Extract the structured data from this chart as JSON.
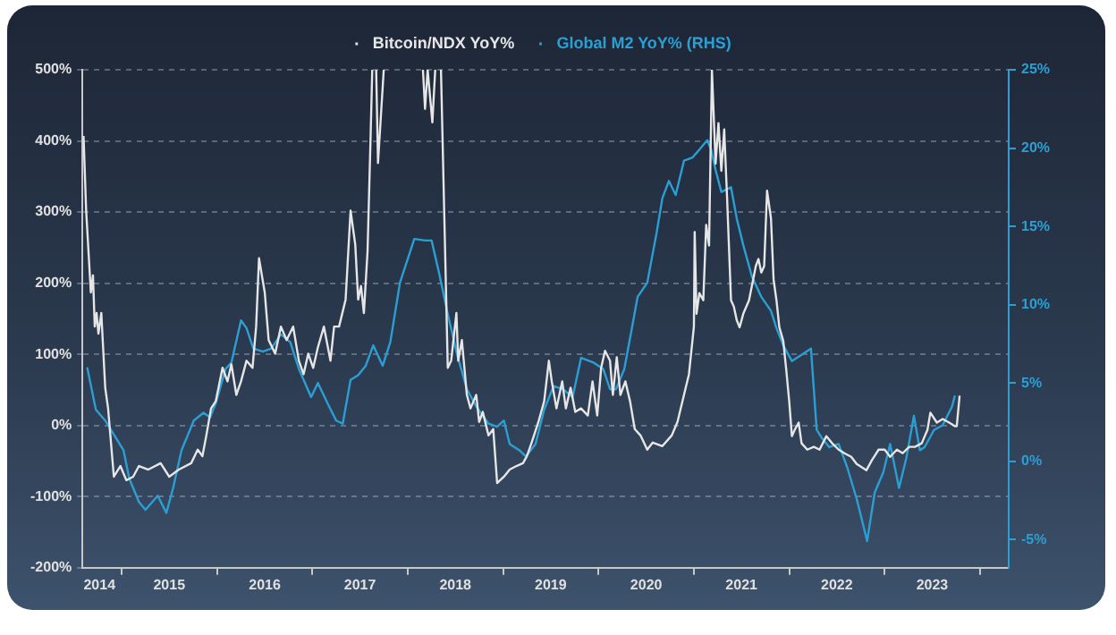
{
  "chart_data": {
    "type": "line",
    "legend": "top",
    "grid": "y",
    "xlim": [
      "2014-08-04",
      "2024-04-20"
    ],
    "xticks": [
      {
        "value": "2014-10-08",
        "label": "2014"
      },
      {
        "value": "2015-01-01",
        "label": null
      },
      {
        "value": "2015-07-02",
        "label": "2015"
      },
      {
        "value": "2016-01-01",
        "label": null
      },
      {
        "value": "2016-07-02",
        "label": "2016"
      },
      {
        "value": "2017-01-01",
        "label": null
      },
      {
        "value": "2017-07-02",
        "label": "2017"
      },
      {
        "value": "2018-01-01",
        "label": null
      },
      {
        "value": "2018-07-02",
        "label": "2018"
      },
      {
        "value": "2019-01-01",
        "label": null
      },
      {
        "value": "2019-07-02",
        "label": "2019"
      },
      {
        "value": "2020-01-01",
        "label": null
      },
      {
        "value": "2020-07-02",
        "label": "2020"
      },
      {
        "value": "2021-01-01",
        "label": null
      },
      {
        "value": "2021-07-02",
        "label": "2021"
      },
      {
        "value": "2022-01-01",
        "label": null
      },
      {
        "value": "2022-07-02",
        "label": "2022"
      },
      {
        "value": "2023-01-01",
        "label": null
      },
      {
        "value": "2023-07-02",
        "label": "2023"
      },
      {
        "value": "2024-01-01",
        "label": null
      }
    ],
    "ylim": [
      -200,
      500
    ],
    "yticks": [
      {
        "value": -200,
        "label": "-200%"
      },
      {
        "value": -100,
        "label": "-100%"
      },
      {
        "value": 0,
        "label": "0%"
      },
      {
        "value": 100,
        "label": "100%"
      },
      {
        "value": 200,
        "label": "200%"
      },
      {
        "value": 300,
        "label": "300%"
      },
      {
        "value": 400,
        "label": "400%"
      },
      {
        "value": 500,
        "label": "500%"
      }
    ],
    "y2lim": [
      -6.8,
      25
    ],
    "y2ticks": [
      {
        "value": -5,
        "label": "-5%"
      },
      {
        "value": 0,
        "label": "0%"
      },
      {
        "value": 5,
        "label": "5%"
      },
      {
        "value": 10,
        "label": "10%"
      },
      {
        "value": 15,
        "label": "15%"
      },
      {
        "value": 20,
        "label": "20%"
      },
      {
        "value": 25,
        "label": "25%"
      }
    ],
    "series": [
      {
        "name": "Bitcoin/NDX YoY%",
        "color": "#e6e6e6",
        "x": [
          "2014-08-08",
          "2014-08-18",
          "2014-09-05",
          "2014-09-13",
          "2014-09-20",
          "2014-09-27",
          "2014-10-04",
          "2014-10-15",
          "2014-10-30",
          "2014-11-10",
          "2014-12-02",
          "2014-12-27",
          "2015-01-19",
          "2015-02-14",
          "2015-03-08",
          "2015-04-13",
          "2015-05-30",
          "2015-07-02",
          "2015-08-08",
          "2015-09-24",
          "2015-10-19",
          "2015-11-06",
          "2015-11-21",
          "2015-12-09",
          "2015-12-27",
          "2016-01-22",
          "2016-02-10",
          "2016-02-25",
          "2016-03-15",
          "2016-04-02",
          "2016-04-23",
          "2016-05-16",
          "2016-05-30",
          "2016-06-10",
          "2016-07-02",
          "2016-07-17",
          "2016-08-11",
          "2016-09-02",
          "2016-09-24",
          "2016-10-19",
          "2016-11-10",
          "2016-11-28",
          "2016-12-16",
          "2017-01-04",
          "2017-01-22",
          "2017-02-14",
          "2017-03-11",
          "2017-03-25",
          "2017-04-13",
          "2017-05-08",
          "2017-05-27",
          "2017-06-14",
          "2017-06-25",
          "2017-07-06",
          "2017-07-17",
          "2017-07-31",
          "2017-08-11",
          "2017-08-18",
          "2017-08-25",
          "2017-09-02",
          "2017-09-09",
          "2017-10-01",
          "2017-12-01",
          "2018-02-28",
          "2018-03-08",
          "2018-03-18",
          "2018-04-05",
          "2018-04-16",
          "2018-04-26",
          "2018-05-08",
          "2018-06-03",
          "2018-06-16",
          "2018-07-06",
          "2018-07-13",
          "2018-07-27",
          "2018-08-15",
          "2018-08-29",
          "2018-09-20",
          "2018-10-01",
          "2018-10-15",
          "2018-11-06",
          "2018-11-24",
          "2018-12-09",
          "2019-01-04",
          "2019-01-26",
          "2019-02-21",
          "2019-03-18",
          "2019-04-02",
          "2019-04-20",
          "2019-05-16",
          "2019-06-07",
          "2019-06-25",
          "2019-07-06",
          "2019-07-24",
          "2019-08-15",
          "2019-08-29",
          "2019-09-16",
          "2019-10-04",
          "2019-10-26",
          "2019-11-21",
          "2019-12-09",
          "2019-12-27",
          "2020-01-11",
          "2020-01-26",
          "2020-02-14",
          "2020-02-25",
          "2020-03-11",
          "2020-03-25",
          "2020-04-13",
          "2020-05-01",
          "2020-05-19",
          "2020-06-10",
          "2020-07-06",
          "2020-07-27",
          "2020-09-02",
          "2020-10-08",
          "2020-10-30",
          "2020-11-24",
          "2020-12-13",
          "2021-01-01",
          "2021-01-04",
          "2021-01-11",
          "2021-01-22",
          "2021-02-06",
          "2021-02-17",
          "2021-02-28",
          "2021-03-11",
          "2021-03-25",
          "2021-04-05",
          "2021-04-16",
          "2021-04-27",
          "2021-05-08",
          "2021-05-23",
          "2021-06-03",
          "2021-06-14",
          "2021-06-25",
          "2021-07-09",
          "2021-07-31",
          "2021-08-26",
          "2021-09-05",
          "2021-09-16",
          "2021-09-27",
          "2021-10-08",
          "2021-10-23",
          "2021-11-02",
          "2021-11-13",
          "2021-11-24",
          "2021-12-09",
          "2021-12-20",
          "2022-01-01",
          "2022-01-11",
          "2022-01-22",
          "2022-02-06",
          "2022-02-17",
          "2022-03-11",
          "2022-04-05",
          "2022-04-27",
          "2022-05-23",
          "2022-06-14",
          "2022-07-09",
          "2022-07-31",
          "2022-08-26",
          "2022-09-16",
          "2022-10-23",
          "2022-11-13",
          "2022-12-09",
          "2023-01-01",
          "2023-01-22",
          "2023-02-17",
          "2023-03-11",
          "2023-04-05",
          "2023-04-27",
          "2023-05-23",
          "2023-06-14",
          "2023-06-25",
          "2023-07-20",
          "2023-08-11",
          "2023-09-05",
          "2023-09-27",
          "2023-10-04",
          "2023-10-15"
        ],
        "values": [
          407,
          302,
          187,
          211,
          139,
          158,
          129,
          158,
          53,
          24,
          -72,
          -57,
          -77,
          -72,
          -57,
          -62,
          -53,
          -72,
          -62,
          -53,
          -34,
          -43,
          -14,
          24,
          34,
          81,
          62,
          86,
          43,
          62,
          91,
          81,
          139,
          235,
          187,
          120,
          101,
          139,
          120,
          139,
          91,
          72,
          101,
          81,
          110,
          139,
          91,
          139,
          139,
          177,
          302,
          254,
          177,
          196,
          158,
          245,
          397,
          500,
          null,
          500,
          369,
          500,
          null,
          500,
          445,
          500,
          426,
          500,
          null,
          500,
          81,
          91,
          158,
          91,
          120,
          43,
          24,
          43,
          5,
          19,
          -14,
          -5,
          -81,
          -72,
          -62,
          -57,
          -53,
          -43,
          -24,
          5,
          34,
          91,
          62,
          24,
          62,
          24,
          53,
          19,
          24,
          14,
          62,
          14,
          81,
          105,
          91,
          43,
          96,
          43,
          62,
          34,
          -5,
          -14,
          -34,
          -24,
          -29,
          -14,
          5,
          43,
          72,
          139,
          272,
          157,
          186,
          176,
          282,
          253,
          500,
          368,
          425,
          358,
          416,
          320,
          176,
          167,
          148,
          138,
          157,
          176,
          224,
          234,
          215,
          224,
          330,
          291,
          205,
          176,
          138,
          119,
          80,
          33,
          -15,
          -6,
          4,
          -25,
          -34,
          -30,
          -34,
          -15,
          -25,
          -34,
          -39,
          -44,
          -54,
          -63,
          -49,
          -34,
          -34,
          -44,
          -34,
          -39,
          -30,
          -30,
          -25,
          -6,
          18,
          4,
          9,
          4,
          -1,
          -1,
          42
        ]
      },
      {
        "name": "Global M2 YoY% (RHS)",
        "color": "#2b9fd4",
        "axis": "y2",
        "x": [
          "2014-08-22",
          "2014-09-24",
          "2014-10-30",
          "2014-12-02",
          "2015-01-08",
          "2015-01-30",
          "2015-03-08",
          "2015-04-02",
          "2015-05-19",
          "2015-06-21",
          "2015-07-17",
          "2015-08-18",
          "2015-10-04",
          "2015-11-10",
          "2015-12-05",
          "2015-12-27",
          "2016-02-03",
          "2016-02-25",
          "2016-04-02",
          "2016-04-23",
          "2016-05-19",
          "2016-06-25",
          "2016-07-27",
          "2016-09-02",
          "2016-10-08",
          "2016-11-10",
          "2016-12-27",
          "2017-01-22",
          "2017-02-28",
          "2017-04-02",
          "2017-04-27",
          "2017-05-27",
          "2017-06-25",
          "2017-07-24",
          "2017-08-22",
          "2017-09-27",
          "2017-10-26",
          "2017-12-02",
          "2018-01-26",
          "2018-03-08",
          "2018-04-02",
          "2018-05-01",
          "2018-06-03",
          "2018-07-09",
          "2018-08-15",
          "2018-09-20",
          "2018-11-06",
          "2018-12-09",
          "2019-01-04",
          "2019-01-26",
          "2019-03-04",
          "2019-03-29",
          "2019-05-05",
          "2019-06-07",
          "2019-07-13",
          "2019-08-18",
          "2019-09-24",
          "2019-10-26",
          "2019-12-13",
          "2020-01-19",
          "2020-02-14",
          "2020-03-08",
          "2020-04-09",
          "2020-05-08",
          "2020-05-30",
          "2020-07-06",
          "2020-08-11",
          "2020-09-02",
          "2020-09-27",
          "2020-10-23",
          "2020-11-24",
          "2020-12-27",
          "2021-01-22",
          "2021-02-21",
          "2021-03-08",
          "2021-03-25",
          "2021-04-16",
          "2021-05-23",
          "2021-06-14",
          "2021-07-09",
          "2021-08-11",
          "2021-09-16",
          "2021-10-23",
          "2021-11-13",
          "2021-12-09",
          "2022-01-11",
          "2022-02-17",
          "2022-03-25",
          "2022-04-16",
          "2022-05-05",
          "2022-06-03",
          "2022-07-09",
          "2022-08-11",
          "2022-09-16",
          "2022-10-26",
          "2022-11-24",
          "2022-12-27",
          "2023-01-22",
          "2023-02-25",
          "2023-03-25",
          "2023-04-23",
          "2023-05-16",
          "2023-06-03",
          "2023-07-09",
          "2023-08-11",
          "2023-09-16",
          "2023-09-27"
        ],
        "values": [
          6.0,
          3.3,
          2.6,
          1.7,
          0.7,
          -1.1,
          -2.6,
          -3.1,
          -2.2,
          -3.3,
          -1.7,
          0.7,
          2.6,
          3.1,
          2.8,
          3.7,
          5.9,
          6.3,
          9.0,
          8.5,
          7.2,
          7.0,
          7.2,
          8.1,
          7.6,
          5.9,
          4.1,
          5.0,
          3.7,
          2.6,
          2.4,
          5.2,
          5.5,
          6.1,
          7.4,
          6.1,
          7.6,
          11.4,
          14.2,
          14.1,
          14.1,
          12.0,
          9.4,
          6.8,
          4.6,
          3.5,
          2.4,
          2.2,
          2.6,
          1.1,
          0.7,
          0.3,
          1.1,
          3.3,
          4.8,
          4.6,
          4.1,
          6.6,
          6.3,
          5.9,
          4.6,
          4.6,
          5.9,
          8.5,
          10.5,
          11.4,
          14.6,
          16.8,
          17.9,
          17.0,
          19.2,
          19.4,
          19.9,
          20.5,
          19.9,
          18.6,
          17.2,
          17.5,
          15.5,
          13.8,
          11.8,
          10.5,
          9.6,
          8.5,
          7.4,
          6.4,
          6.8,
          7.2,
          2.0,
          1.5,
          0.9,
          1.1,
          -0.4,
          -2.4,
          -5.1,
          -2.0,
          -0.7,
          1.1,
          -1.7,
          0.2,
          2.9,
          0.7,
          0.9,
          2.0,
          2.3,
          3.5,
          4.2
        ]
      }
    ]
  }
}
